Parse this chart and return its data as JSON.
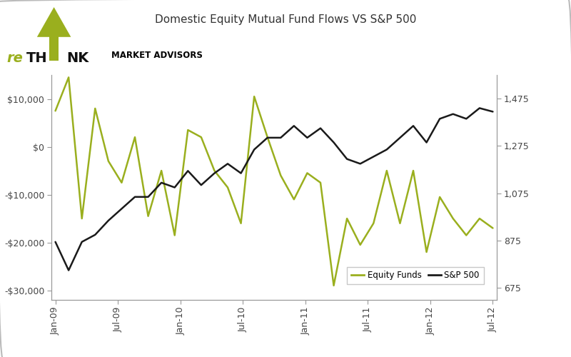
{
  "title": "Domestic Equity Mutual Fund Flows VS S&P 500",
  "x_labels": [
    "Jan-09",
    "Jul-09",
    "Jan-10",
    "Jul-10",
    "Jan-11",
    "Jul-11",
    "Jan-12",
    "Jul-12"
  ],
  "equity_funds": [
    7500,
    14500,
    -15000,
    8000,
    -3000,
    -7500,
    2000,
    -14500,
    -5000,
    -18500,
    3500,
    2000,
    -5000,
    -8500,
    -16000,
    10500,
    2000,
    -6000,
    -11000,
    -5500,
    -7500,
    -29000,
    -15000,
    -20500,
    -16000,
    -5000,
    -16000,
    -5000,
    -22000,
    -10500,
    -15000,
    -18500,
    -15000,
    -17000
  ],
  "sp500": [
    870,
    750,
    870,
    900,
    960,
    1010,
    1060,
    1060,
    1120,
    1100,
    1170,
    1110,
    1160,
    1200,
    1160,
    1260,
    1310,
    1310,
    1360,
    1310,
    1350,
    1290,
    1220,
    1200,
    1230,
    1260,
    1310,
    1360,
    1290,
    1390,
    1410,
    1390,
    1435,
    1420
  ],
  "equity_color": "#9aaf1e",
  "sp500_color": "#1a1a1a",
  "left_ylim": [
    -32000,
    15000
  ],
  "right_ylim": [
    625,
    1575
  ],
  "left_yticks": [
    -30000,
    -20000,
    -10000,
    0,
    10000
  ],
  "left_yticklabels": [
    "-$30,000",
    "-$20,000",
    "-$10,000",
    "$0",
    "$10,000"
  ],
  "right_yticks": [
    675,
    875,
    1075,
    1275,
    1475
  ],
  "right_yticklabels": [
    "675",
    "875",
    "1,075",
    "1,275",
    "1,475"
  ],
  "background_color": "#ffffff",
  "axis_color": "#999999",
  "legend_equity": "Equity Funds",
  "legend_sp500": "S&P 500",
  "title_fontsize": 11,
  "tick_fontsize": 9,
  "line_width": 1.8,
  "logo_re_color": "#9aaf1e",
  "logo_arrow_color": "#9aaf1e",
  "logo_think_color": "#111111",
  "market_advisors_text": "MARKET ADVISORS"
}
